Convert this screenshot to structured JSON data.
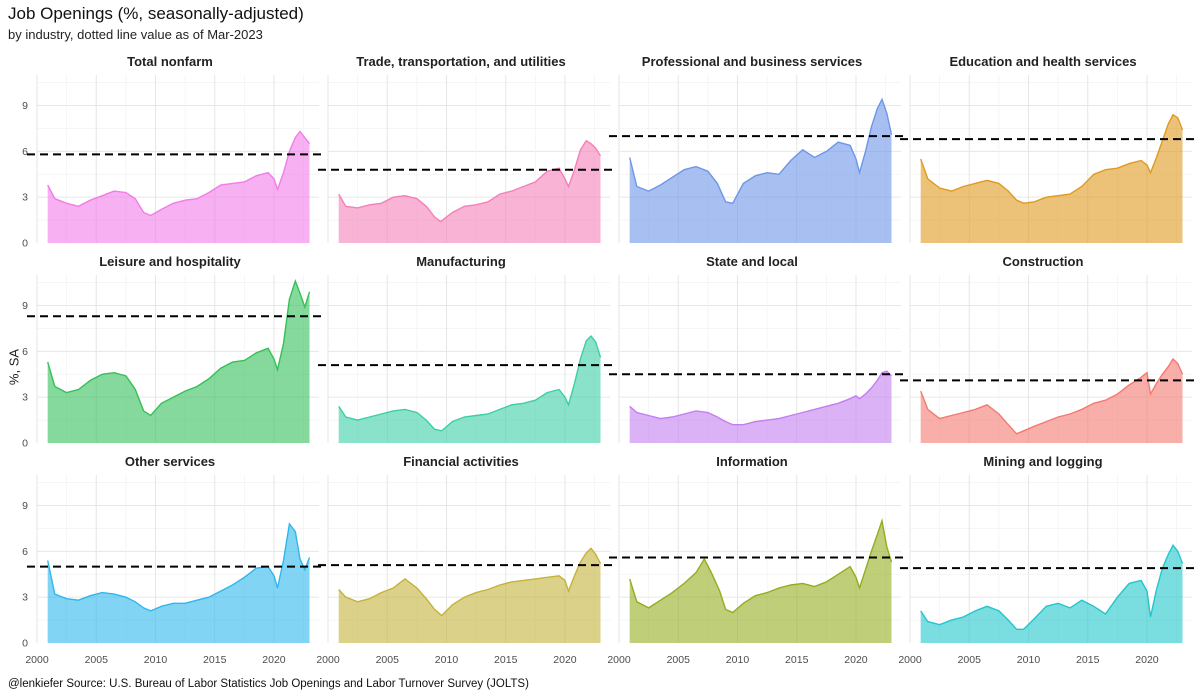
{
  "title": "Job Openings (%, seasonally-adjusted)",
  "subtitle": "by industry, dotted line value as of Mar-2023",
  "caption": "@lenkiefer Source: U.S. Bureau of Labor Statistics Job Openings and Labor Turnover Survey (JOLTS)",
  "chart_data": {
    "type": "area",
    "layout": "facet 3x4",
    "ylabel": "%, SA",
    "x_ticks": [
      2000,
      2005,
      2010,
      2015,
      2020
    ],
    "y_ticks": [
      0,
      3,
      6,
      9
    ],
    "xlim": [
      2000,
      2023.8
    ],
    "ylim": [
      0,
      11
    ],
    "reference_line": "dashed black line at Mar-2023 value",
    "grid": true,
    "panels": [
      {
        "name": "Total nonfarm",
        "color": "#f27ce8",
        "ref": 5.8,
        "x": [
          2000.9,
          2001.5,
          2002.5,
          2003.5,
          2004.5,
          2005.5,
          2006.5,
          2007.5,
          2008.3,
          2009.0,
          2009.6,
          2010.5,
          2011.5,
          2012.5,
          2013.5,
          2014.5,
          2015.5,
          2016.5,
          2017.5,
          2018.5,
          2019.5,
          2020.0,
          2020.3,
          2020.8,
          2021.3,
          2021.8,
          2022.2,
          2022.6,
          2023.0
        ],
        "y": [
          3.8,
          2.9,
          2.6,
          2.4,
          2.8,
          3.1,
          3.4,
          3.3,
          2.9,
          2.0,
          1.8,
          2.2,
          2.6,
          2.8,
          2.9,
          3.3,
          3.8,
          3.9,
          4.0,
          4.4,
          4.6,
          4.2,
          3.5,
          4.6,
          6.0,
          6.9,
          7.3,
          6.9,
          6.5
        ]
      },
      {
        "name": "Trade, transportation, and utilities",
        "color": "#f580b8",
        "ref": 4.8,
        "x": [
          2000.9,
          2001.5,
          2002.5,
          2003.5,
          2004.5,
          2005.5,
          2006.5,
          2007.5,
          2008.3,
          2009.0,
          2009.5,
          2010.5,
          2011.5,
          2012.5,
          2013.5,
          2014.5,
          2015.5,
          2016.5,
          2017.5,
          2018.5,
          2019.5,
          2020.0,
          2020.3,
          2020.8,
          2021.3,
          2021.8,
          2022.2,
          2022.6,
          2023.0
        ],
        "y": [
          3.2,
          2.4,
          2.3,
          2.5,
          2.6,
          3.0,
          3.1,
          2.9,
          2.4,
          1.7,
          1.4,
          2.0,
          2.4,
          2.5,
          2.7,
          3.2,
          3.4,
          3.7,
          4.0,
          4.7,
          4.9,
          4.2,
          3.7,
          4.8,
          6.1,
          6.7,
          6.5,
          6.2,
          5.7
        ]
      },
      {
        "name": "Professional and business services",
        "color": "#6e96e8",
        "ref": 7.0,
        "x": [
          2000.9,
          2001.5,
          2002.5,
          2003.5,
          2004.5,
          2005.5,
          2006.5,
          2007.5,
          2008.3,
          2009.0,
          2009.6,
          2010.5,
          2011.5,
          2012.5,
          2013.5,
          2014.5,
          2015.5,
          2016.5,
          2017.5,
          2018.5,
          2019.5,
          2020.0,
          2020.3,
          2020.8,
          2021.3,
          2021.8,
          2022.2,
          2022.6,
          2023.0
        ],
        "y": [
          5.6,
          3.7,
          3.4,
          3.8,
          4.3,
          4.8,
          5.0,
          4.7,
          3.9,
          2.7,
          2.6,
          3.9,
          4.4,
          4.6,
          4.5,
          5.4,
          6.1,
          5.6,
          6.0,
          6.6,
          6.4,
          5.5,
          4.6,
          6.0,
          7.6,
          8.8,
          9.4,
          8.5,
          7.1
        ]
      },
      {
        "name": "Education and health services",
        "color": "#df9a20",
        "ref": 6.8,
        "x": [
          2000.9,
          2001.5,
          2002.5,
          2003.5,
          2004.5,
          2005.5,
          2006.5,
          2007.5,
          2008.3,
          2009.0,
          2009.6,
          2010.5,
          2011.5,
          2012.5,
          2013.5,
          2014.5,
          2015.5,
          2016.5,
          2017.5,
          2018.5,
          2019.5,
          2020.0,
          2020.3,
          2020.8,
          2021.3,
          2021.8,
          2022.2,
          2022.6,
          2023.0
        ],
        "y": [
          5.5,
          4.2,
          3.6,
          3.4,
          3.7,
          3.9,
          4.1,
          3.9,
          3.4,
          2.8,
          2.6,
          2.7,
          3.0,
          3.1,
          3.2,
          3.7,
          4.5,
          4.8,
          4.9,
          5.2,
          5.4,
          5.1,
          4.6,
          5.6,
          6.7,
          7.8,
          8.4,
          8.2,
          7.4
        ]
      },
      {
        "name": "Leisure and hospitality",
        "color": "#35c05a",
        "ref": 8.3,
        "x": [
          2000.9,
          2001.5,
          2002.5,
          2003.5,
          2004.5,
          2005.5,
          2006.5,
          2007.5,
          2008.3,
          2009.0,
          2009.6,
          2010.5,
          2011.5,
          2012.5,
          2013.5,
          2014.5,
          2015.5,
          2016.5,
          2017.5,
          2018.5,
          2019.5,
          2020.0,
          2020.3,
          2020.8,
          2021.3,
          2021.8,
          2022.2,
          2022.6,
          2023.0
        ],
        "y": [
          5.3,
          3.7,
          3.3,
          3.5,
          4.1,
          4.5,
          4.6,
          4.4,
          3.5,
          2.1,
          1.8,
          2.6,
          3.0,
          3.4,
          3.7,
          4.2,
          4.9,
          5.3,
          5.4,
          5.9,
          6.2,
          5.5,
          4.8,
          6.5,
          9.4,
          10.6,
          9.8,
          8.9,
          9.9
        ]
      },
      {
        "name": "Manufacturing",
        "color": "#3ccfa6",
        "ref": 5.1,
        "x": [
          2000.9,
          2001.5,
          2002.5,
          2003.5,
          2004.5,
          2005.5,
          2006.5,
          2007.5,
          2008.3,
          2009.0,
          2009.6,
          2010.5,
          2011.5,
          2012.5,
          2013.5,
          2014.5,
          2015.5,
          2016.5,
          2017.5,
          2018.5,
          2019.5,
          2020.0,
          2020.3,
          2020.8,
          2021.3,
          2021.8,
          2022.2,
          2022.6,
          2023.0
        ],
        "y": [
          2.4,
          1.7,
          1.5,
          1.7,
          1.9,
          2.1,
          2.2,
          2.0,
          1.5,
          0.9,
          0.8,
          1.4,
          1.7,
          1.8,
          1.9,
          2.2,
          2.5,
          2.6,
          2.8,
          3.3,
          3.5,
          3.0,
          2.5,
          3.9,
          5.5,
          6.7,
          7.0,
          6.6,
          5.6
        ]
      },
      {
        "name": "State and local",
        "color": "#c47ef0",
        "ref": 4.5,
        "x": [
          2000.9,
          2001.5,
          2002.5,
          2003.5,
          2004.5,
          2005.5,
          2006.5,
          2007.5,
          2008.3,
          2009.0,
          2009.6,
          2010.5,
          2011.5,
          2012.5,
          2013.5,
          2014.5,
          2015.5,
          2016.5,
          2017.5,
          2018.5,
          2019.5,
          2020.0,
          2020.3,
          2020.8,
          2021.3,
          2021.8,
          2022.2,
          2022.6,
          2023.0
        ],
        "y": [
          2.4,
          2.0,
          1.8,
          1.6,
          1.7,
          1.9,
          2.1,
          2.0,
          1.7,
          1.4,
          1.2,
          1.2,
          1.4,
          1.5,
          1.6,
          1.8,
          2.0,
          2.2,
          2.4,
          2.6,
          2.9,
          3.1,
          2.9,
          3.2,
          3.6,
          4.1,
          4.6,
          4.7,
          4.4
        ]
      },
      {
        "name": "Construction",
        "color": "#f47a70",
        "ref": 4.1,
        "x": [
          2000.9,
          2001.5,
          2002.5,
          2003.5,
          2004.5,
          2005.5,
          2006.5,
          2007.5,
          2008.3,
          2009.0,
          2009.6,
          2010.5,
          2011.5,
          2012.5,
          2013.5,
          2014.5,
          2015.5,
          2016.5,
          2017.5,
          2018.5,
          2019.5,
          2020.0,
          2020.3,
          2020.8,
          2021.3,
          2021.8,
          2022.2,
          2022.6,
          2023.0
        ],
        "y": [
          3.4,
          2.2,
          1.6,
          1.8,
          2.0,
          2.2,
          2.5,
          1.9,
          1.2,
          0.6,
          0.8,
          1.1,
          1.4,
          1.7,
          1.9,
          2.2,
          2.6,
          2.8,
          3.2,
          3.8,
          4.3,
          4.6,
          3.2,
          3.9,
          4.5,
          5.0,
          5.5,
          5.2,
          4.5
        ]
      },
      {
        "name": "Other services",
        "color": "#2fb7ec",
        "ref": 5.0,
        "x": [
          2000.9,
          2001.5,
          2002.5,
          2003.5,
          2004.5,
          2005.5,
          2006.5,
          2007.5,
          2008.3,
          2009.0,
          2009.6,
          2010.5,
          2011.5,
          2012.5,
          2013.5,
          2014.5,
          2015.5,
          2016.5,
          2017.5,
          2018.5,
          2019.5,
          2020.0,
          2020.3,
          2020.8,
          2021.3,
          2021.8,
          2022.2,
          2022.6,
          2023.0
        ],
        "y": [
          5.4,
          3.2,
          2.9,
          2.8,
          3.1,
          3.3,
          3.2,
          3.0,
          2.7,
          2.3,
          2.1,
          2.4,
          2.6,
          2.6,
          2.8,
          3.0,
          3.4,
          3.8,
          4.3,
          4.9,
          5.0,
          4.4,
          3.6,
          5.4,
          7.8,
          7.3,
          5.5,
          4.8,
          5.6
        ]
      },
      {
        "name": "Financial activities",
        "color": "#c5b23a",
        "ref": 5.1,
        "x": [
          2000.9,
          2001.5,
          2002.5,
          2003.5,
          2004.5,
          2005.5,
          2006.5,
          2007.5,
          2008.3,
          2009.0,
          2009.6,
          2010.5,
          2011.5,
          2012.5,
          2013.5,
          2014.5,
          2015.5,
          2016.5,
          2017.5,
          2018.5,
          2019.5,
          2020.0,
          2020.3,
          2020.8,
          2021.3,
          2021.8,
          2022.2,
          2022.6,
          2023.0
        ],
        "y": [
          3.5,
          3.0,
          2.7,
          2.9,
          3.3,
          3.6,
          4.2,
          3.6,
          2.9,
          2.2,
          1.8,
          2.5,
          3.0,
          3.3,
          3.5,
          3.8,
          4.0,
          4.1,
          4.2,
          4.3,
          4.4,
          4.1,
          3.4,
          4.4,
          5.3,
          5.9,
          6.2,
          5.8,
          5.2
        ]
      },
      {
        "name": "Information",
        "color": "#93ad1f",
        "ref": 5.6,
        "x": [
          2000.9,
          2001.5,
          2002.5,
          2003.5,
          2004.5,
          2005.5,
          2006.5,
          2007.2,
          2007.8,
          2008.5,
          2009.0,
          2009.6,
          2010.5,
          2011.5,
          2012.5,
          2013.5,
          2014.5,
          2015.5,
          2016.5,
          2017.5,
          2018.5,
          2019.5,
          2020.0,
          2020.3,
          2020.8,
          2021.3,
          2021.8,
          2022.2,
          2022.6,
          2023.0
        ],
        "y": [
          4.2,
          2.7,
          2.3,
          2.8,
          3.3,
          3.9,
          4.6,
          5.5,
          4.6,
          3.4,
          2.2,
          2.0,
          2.6,
          3.1,
          3.3,
          3.6,
          3.8,
          3.9,
          3.7,
          4.0,
          4.5,
          5.0,
          4.3,
          3.6,
          4.8,
          6.0,
          7.1,
          8.0,
          6.3,
          5.3
        ]
      },
      {
        "name": "Mining and logging",
        "color": "#22c6cc",
        "ref": 4.9,
        "x": [
          2000.9,
          2001.5,
          2002.5,
          2003.5,
          2004.5,
          2005.5,
          2006.5,
          2007.5,
          2008.3,
          2009.0,
          2009.6,
          2010.5,
          2011.5,
          2012.5,
          2013.5,
          2014.5,
          2015.5,
          2016.5,
          2017.5,
          2018.5,
          2019.5,
          2020.0,
          2020.3,
          2020.8,
          2021.3,
          2021.8,
          2022.2,
          2022.6,
          2023.0
        ],
        "y": [
          2.1,
          1.4,
          1.2,
          1.5,
          1.7,
          2.1,
          2.4,
          2.1,
          1.5,
          0.9,
          0.9,
          1.6,
          2.4,
          2.6,
          2.3,
          2.8,
          2.4,
          1.9,
          3.0,
          3.9,
          4.1,
          3.4,
          1.7,
          3.5,
          4.9,
          5.8,
          6.4,
          6.0,
          5.2
        ]
      }
    ]
  }
}
